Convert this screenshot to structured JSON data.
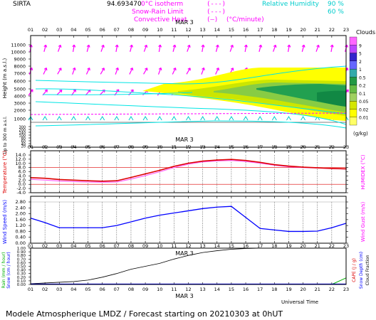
{
  "header": {
    "station": "SIRTA",
    "coords": "94.693470",
    "legend_0c": "0°C isotherm",
    "legend_snow": "Snow-Rain Limit",
    "legend_conv": "Convective Heat.",
    "legend_conv_units": "(°C/minute)",
    "legend_rh": "Relative Humidity",
    "rh_90": "90 %",
    "rh_60": "60 %"
  },
  "footer": {
    "title": "Modele Atmospherique LMDZ / Forecast starting on 20210303 at 0hUT",
    "xaxis": "Universal Time"
  },
  "colors": {
    "magenta": "#ff00ff",
    "cyan": "#00e5e5",
    "red": "#dd0000",
    "blue": "#0000ff",
    "green": "#00b000"
  },
  "chart_data": [
    {
      "type": "heatmap",
      "ylabel": "Height  (m a.s.l.)",
      "ylabel2": "Up to 300 m a.s.l.",
      "date_label": "MAR 3",
      "hours": [
        "01",
        "02",
        "03",
        "04",
        "05",
        "06",
        "07",
        "08",
        "09",
        "10",
        "11",
        "12",
        "13",
        "14",
        "15",
        "16",
        "17",
        "18",
        "19",
        "20",
        "21",
        "22",
        "23"
      ],
      "yticks": [
        "11000",
        "10000",
        "9000",
        "8000",
        "7000",
        "6000",
        "5000",
        "4000",
        "3000",
        "2000",
        "1000",
        "300",
        "200",
        "140",
        "100",
        "80",
        "60",
        "40",
        "20"
      ],
      "colorbar": {
        "title": "Clouds",
        "units": "(g/kg)",
        "labels": [
          "0.01",
          "0.02",
          "0.05",
          "0.1",
          "0.2",
          "0.5",
          "1",
          "2",
          "5",
          "9"
        ],
        "colors": [
          "#ffff66",
          "#ffff00",
          "#d4e600",
          "#a0d060",
          "#66bb44",
          "#229944",
          "#33aaaa",
          "#6666ff",
          "#3322cc",
          "#bb44ff",
          "#ff66ff"
        ]
      }
    },
    {
      "type": "line",
      "ylabel": "Temperature (°C)",
      "ylabel2": "HUMIDEX (°C)",
      "yticks": [
        "14.0",
        "12.0",
        "10.0",
        "8.0",
        "6.0",
        "4.0",
        "2.0",
        "0.0",
        "-2.0",
        "-4.0"
      ],
      "ylim": [
        -4,
        14
      ],
      "x": [
        1,
        2,
        3,
        4,
        5,
        6,
        7,
        8,
        9,
        10,
        11,
        12,
        13,
        14,
        15,
        16,
        17,
        18,
        19,
        20,
        21,
        22,
        23
      ],
      "series": [
        {
          "name": "Temperature",
          "values": [
            3.2,
            2.9,
            2.3,
            2.0,
            1.7,
            1.5,
            1.7,
            3.3,
            5.0,
            6.7,
            8.6,
            10.1,
            11.1,
            11.6,
            11.9,
            11.4,
            10.5,
            9.4,
            8.7,
            8.2,
            7.9,
            7.6,
            7.4
          ]
        },
        {
          "name": "HUMIDEX",
          "values": [
            2.4,
            2.0,
            1.6,
            1.3,
            1.1,
            1.0,
            1.1,
            2.5,
            4.2,
            6.0,
            8.0,
            9.6,
            10.7,
            11.2,
            11.4,
            10.9,
            10.1,
            9.1,
            8.4,
            8.0,
            7.8,
            7.5,
            7.3
          ]
        }
      ]
    },
    {
      "type": "line",
      "ylabel": "Wind Speed (m/s)",
      "ylabel2": "Wind Gust (m/s)",
      "yticks": [
        "2.80",
        "2.40",
        "2.00",
        "1.60",
        "1.20",
        "0.80",
        "0.40",
        "0.00"
      ],
      "ylim": [
        0,
        2.8
      ],
      "x": [
        1,
        2,
        3,
        4,
        5,
        6,
        7,
        8,
        9,
        10,
        11,
        12,
        13,
        14,
        15,
        16,
        17,
        18,
        19,
        20,
        21,
        22,
        23
      ],
      "series": [
        {
          "name": "Wind Speed",
          "values": [
            1.7,
            1.4,
            1.05,
            1.05,
            1.05,
            1.05,
            1.2,
            1.45,
            1.7,
            1.9,
            2.05,
            2.2,
            2.35,
            2.45,
            2.5,
            1.75,
            1.0,
            0.9,
            0.8,
            0.8,
            0.82,
            1.05,
            1.35
          ]
        }
      ]
    },
    {
      "type": "line",
      "ylabel": "Rain (mm / hour)",
      "ylabel_snow": "Snow (cm / hour)",
      "ylabel2": "CAPE (J / g)",
      "ylabel2_snow": "Snow Depth (cm)",
      "ylabel2_cloud": "Cloud Fraction",
      "yticks": [
        "1.00",
        "0.90",
        "0.80",
        "0.70",
        "0.60",
        "0.50",
        "0.40",
        "0.30",
        "0.20",
        "0.10",
        "0.00"
      ],
      "ylim": [
        0,
        1
      ],
      "x": [
        1,
        2,
        3,
        4,
        5,
        6,
        7,
        8,
        9,
        10,
        11,
        12,
        13,
        14,
        15,
        16,
        17,
        18,
        19,
        20,
        21,
        22,
        23
      ],
      "series": [
        {
          "name": "Cloud Fraction",
          "values": [
            0.02,
            0.04,
            0.06,
            0.08,
            0.12,
            0.2,
            0.3,
            0.42,
            0.5,
            0.58,
            0.7,
            0.8,
            0.88,
            0.93,
            0.97,
            0.99,
            1,
            1,
            1,
            1,
            1,
            1,
            1
          ]
        },
        {
          "name": "Rain",
          "values": [
            0,
            0,
            0,
            0,
            0,
            0,
            0,
            0,
            0,
            0,
            0,
            0,
            0,
            0,
            0,
            0,
            0,
            0,
            0,
            0,
            0,
            0,
            0.18
          ]
        }
      ]
    }
  ]
}
